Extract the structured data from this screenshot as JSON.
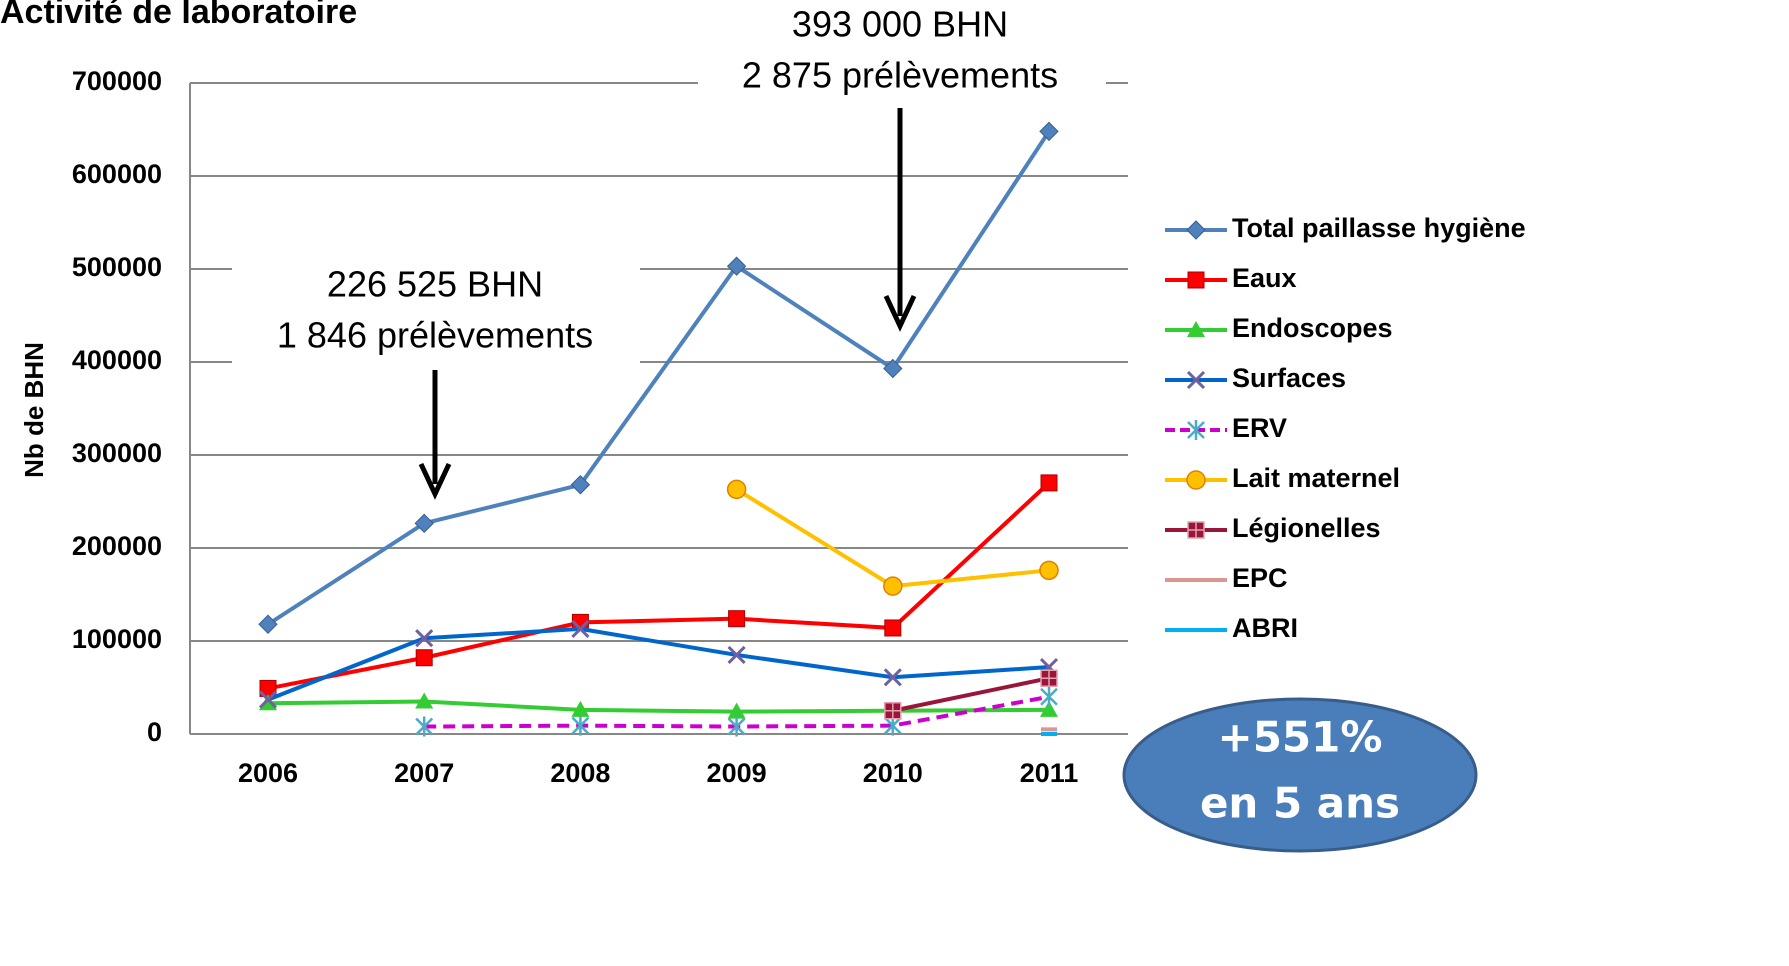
{
  "chart_data": {
    "type": "line",
    "title": "Activité de laboratoire",
    "ylabel": "Nb de BHN",
    "categories": [
      "2006",
      "2007",
      "2008",
      "2009",
      "2010",
      "2011"
    ],
    "ylim": [
      0,
      700000
    ],
    "yticks": [
      0,
      100000,
      200000,
      300000,
      400000,
      500000,
      600000,
      700000
    ],
    "grid": true,
    "series": [
      {
        "name": "Total paillasse hygiène",
        "color": "#4f81bd",
        "marker": "diamond",
        "values": [
          118000,
          226525,
          268000,
          503000,
          393000,
          648000
        ]
      },
      {
        "name": "Eaux",
        "color": "#ff0000",
        "marker": "square",
        "values": [
          49000,
          82000,
          120000,
          124000,
          114000,
          270000
        ]
      },
      {
        "name": "Endoscopes",
        "color": "#33cc33",
        "marker": "triangle",
        "values": [
          33000,
          35000,
          26000,
          24000,
          25000,
          26000
        ]
      },
      {
        "name": "Surfaces",
        "color": "#0066cc",
        "marker": "x",
        "values": [
          37000,
          103000,
          113000,
          85000,
          61000,
          72000
        ]
      },
      {
        "name": "ERV",
        "color": "#cc00cc",
        "marker": "asterisk",
        "dash": true,
        "values": [
          null,
          8000,
          9000,
          8000,
          9000,
          40000
        ]
      },
      {
        "name": "Lait maternel",
        "color": "#ffc000",
        "marker": "circle",
        "values": [
          null,
          null,
          null,
          263000,
          159000,
          176000
        ]
      },
      {
        "name": "Légionelles",
        "color": "#99163a",
        "marker": "squareplus",
        "values": [
          null,
          null,
          null,
          null,
          25000,
          60000
        ]
      },
      {
        "name": "EPC",
        "color": "#d99694",
        "marker": "none",
        "values": [
          null,
          null,
          null,
          null,
          null,
          5000
        ]
      },
      {
        "name": "ABRI",
        "color": "#00b0f0",
        "marker": "none",
        "values": [
          null,
          null,
          null,
          null,
          null,
          0
        ]
      }
    ],
    "annotations": [
      {
        "lines": [
          "226 525 BHN",
          "1 846 prélèvements"
        ]
      },
      {
        "lines": [
          "393 000 BHN",
          "2 875 prélèvements"
        ]
      },
      {
        "lines": [
          "+551%",
          "en 5 ans"
        ]
      }
    ]
  }
}
